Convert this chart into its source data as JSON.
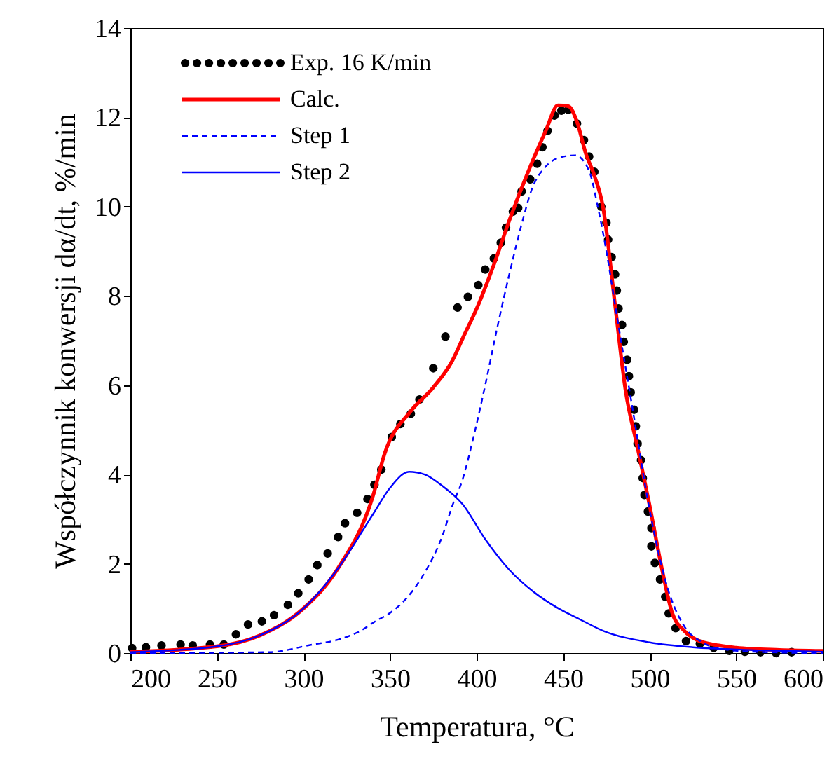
{
  "chart_data": {
    "type": "line",
    "xlabel": "Temperatura, °C",
    "ylabel": "Współczynnik konwersji dα/dt, %/min",
    "xlim": [
      200,
      600
    ],
    "xticks": [
      200,
      250,
      300,
      350,
      400,
      450,
      500,
      550,
      600
    ],
    "ylim": [
      0,
      14
    ],
    "yticks": [
      0,
      2,
      4,
      6,
      8,
      10,
      12,
      14
    ],
    "grid": false,
    "legend": "top left",
    "series": [
      {
        "name": "Exp. 16 K/min",
        "type": "scatter",
        "marker": "circle",
        "color": "#000000",
        "x": [
          201,
          209,
          218,
          229,
          236,
          246,
          254,
          261,
          268,
          276,
          283,
          291,
          297,
          303,
          308,
          314,
          320,
          324,
          331,
          337,
          341,
          345,
          351,
          356,
          362,
          367,
          375,
          382,
          389,
          395,
          401,
          405,
          410,
          414,
          417,
          421,
          424,
          426,
          431,
          435,
          438,
          441,
          445,
          449,
          453,
          458,
          462,
          465,
          468,
          472,
          475,
          476,
          478,
          480,
          481,
          482,
          484,
          485,
          487,
          488,
          489,
          491,
          492,
          493,
          495,
          496,
          497,
          499,
          501,
          501,
          503,
          506,
          509,
          511,
          515,
          521,
          529,
          537,
          546,
          555,
          564,
          573,
          582
        ],
        "values": [
          0.11,
          0.13,
          0.17,
          0.19,
          0.17,
          0.19,
          0.19,
          0.42,
          0.64,
          0.71,
          0.85,
          1.08,
          1.34,
          1.65,
          1.97,
          2.23,
          2.6,
          2.91,
          3.14,
          3.45,
          3.77,
          4.11,
          4.84,
          5.13,
          5.36,
          5.68,
          6.38,
          7.09,
          7.74,
          7.98,
          8.24,
          8.59,
          8.84,
          9.19,
          9.53,
          9.89,
          9.97,
          10.34,
          10.61,
          10.96,
          11.33,
          11.7,
          12.04,
          12.15,
          12.17,
          11.86,
          11.49,
          11.12,
          10.78,
          10.0,
          9.64,
          9.26,
          8.87,
          8.48,
          8.12,
          7.72,
          7.35,
          6.97,
          6.57,
          6.2,
          5.84,
          5.45,
          5.08,
          4.69,
          4.32,
          3.92,
          3.54,
          3.17,
          2.8,
          2.39,
          2.02,
          1.65,
          1.26,
          0.89,
          0.56,
          0.27,
          0.21,
          0.12,
          0.05,
          0.03,
          0.02,
          0.0,
          0.02
        ]
      },
      {
        "name": "Calc.",
        "line_style": "solid",
        "color": "#ff0000",
        "x": [
          200,
          250,
          275,
          300,
          320,
          340,
          347,
          362,
          375,
          386,
          392,
          401,
          410,
          419,
          430,
          440,
          447,
          453,
          458,
          463,
          468,
          473,
          480,
          486,
          493,
          500,
          507,
          513,
          520,
          527,
          540,
          550,
          575,
          600
        ],
        "values": [
          0.03,
          0.15,
          0.4,
          1.0,
          1.9,
          3.5,
          4.48,
          5.42,
          5.95,
          6.55,
          7.05,
          7.8,
          8.7,
          9.7,
          10.8,
          11.7,
          12.27,
          12.25,
          11.9,
          11.2,
          10.7,
          10.0,
          7.8,
          5.9,
          4.6,
          3.3,
          1.9,
          0.9,
          0.5,
          0.3,
          0.17,
          0.12,
          0.07,
          0.05
        ]
      },
      {
        "name": "Step 1",
        "line_style": "dashed",
        "color": "#0000ff",
        "x": [
          200,
          280,
          305,
          320,
          333,
          341,
          350,
          360,
          370,
          380,
          386,
          392,
          398,
          405,
          412,
          419,
          426,
          432,
          440,
          448,
          457,
          465,
          470,
          475,
          480,
          490,
          500,
          510,
          520,
          530,
          540,
          560,
          600
        ],
        "values": [
          0.0,
          0.02,
          0.19,
          0.3,
          0.5,
          0.7,
          0.9,
          1.25,
          1.8,
          2.6,
          3.3,
          3.9,
          4.8,
          6.0,
          7.3,
          8.5,
          9.6,
          10.4,
          10.9,
          11.1,
          11.15,
          10.8,
          10.0,
          9.0,
          7.8,
          5.5,
          3.2,
          1.5,
          0.6,
          0.25,
          0.1,
          0.03,
          0.0
        ]
      },
      {
        "name": "Step 2",
        "line_style": "solid",
        "color": "#0000ff",
        "x": [
          200,
          250,
          275,
          300,
          320,
          340,
          350,
          361,
          370,
          380,
          392,
          405,
          419,
          432,
          446,
          460,
          473,
          500,
          525,
          550,
          575,
          600
        ],
        "values": [
          0.02,
          0.15,
          0.4,
          1.0,
          1.9,
          3.1,
          3.7,
          4.06,
          4.0,
          3.75,
          3.33,
          2.55,
          1.86,
          1.4,
          1.03,
          0.75,
          0.5,
          0.24,
          0.13,
          0.08,
          0.05,
          0.03
        ]
      }
    ]
  }
}
